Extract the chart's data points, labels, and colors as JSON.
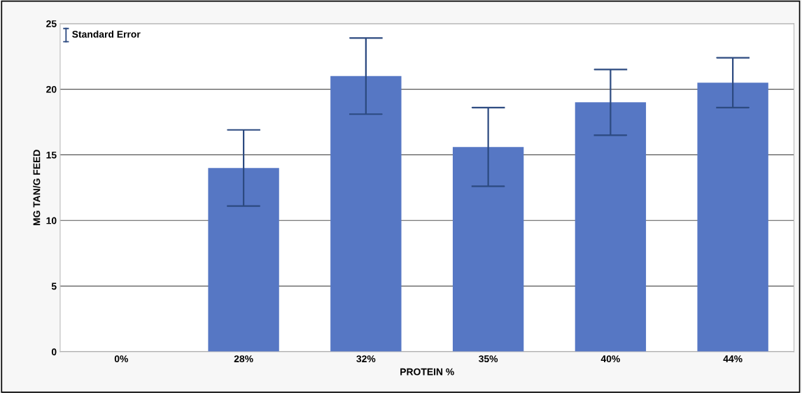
{
  "chart_data": {
    "type": "bar",
    "xlabel": "PROTEIN %",
    "ylabel": "MG TAN/G FEED",
    "categories": [
      "0%",
      "28%",
      "32%",
      "35%",
      "40%",
      "44%"
    ],
    "values": [
      0,
      14.0,
      21.0,
      15.6,
      19.0,
      20.5
    ],
    "errors": [
      null,
      2.9,
      2.9,
      3.0,
      2.5,
      1.9
    ],
    "color": "#5677c4",
    "ylim": [
      0,
      25
    ],
    "yticks": [
      0,
      5,
      10,
      15,
      20,
      25
    ],
    "grid": "y",
    "annotations": [
      "Standard Error"
    ]
  }
}
